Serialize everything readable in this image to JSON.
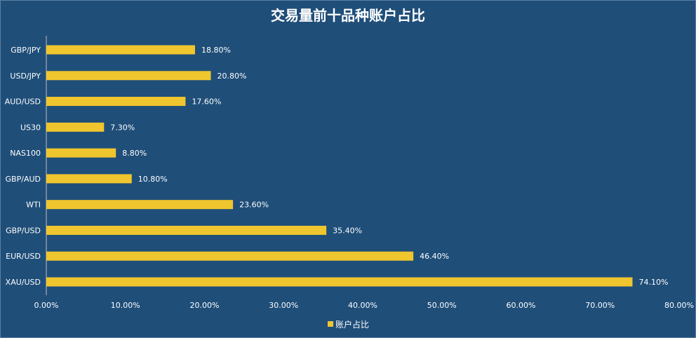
{
  "chart_data": {
    "type": "bar",
    "orientation": "horizontal",
    "title": "交易量前十品种账户占比",
    "categories": [
      "GBP/JPY",
      "USD/JPY",
      "AUD/USD",
      "US30",
      "NAS100",
      "GBP/AUD",
      "WTI",
      "GBP/USD",
      "EUR/USD",
      "XAU/USD"
    ],
    "series": [
      {
        "name": "账户占比",
        "values": [
          18.8,
          20.8,
          17.6,
          7.3,
          8.8,
          10.8,
          23.6,
          35.4,
          46.4,
          74.1
        ],
        "labels": [
          "18.80%",
          "20.80%",
          "17.60%",
          "7.30%",
          "8.80%",
          "10.80%",
          "23.60%",
          "35.40%",
          "46.40%",
          "74.10%"
        ]
      }
    ],
    "xlim": [
      0,
      80
    ],
    "x_ticks": [
      "0.00%",
      "10.00%",
      "20.00%",
      "30.00%",
      "40.00%",
      "50.00%",
      "60.00%",
      "70.00%",
      "80.00%"
    ],
    "legend_position": "bottom",
    "grid": false,
    "colors": {
      "background": "#1F4E79",
      "bar": "#F0C62E",
      "text": "#FFFFFF",
      "axis": "#BFBFBF"
    }
  }
}
